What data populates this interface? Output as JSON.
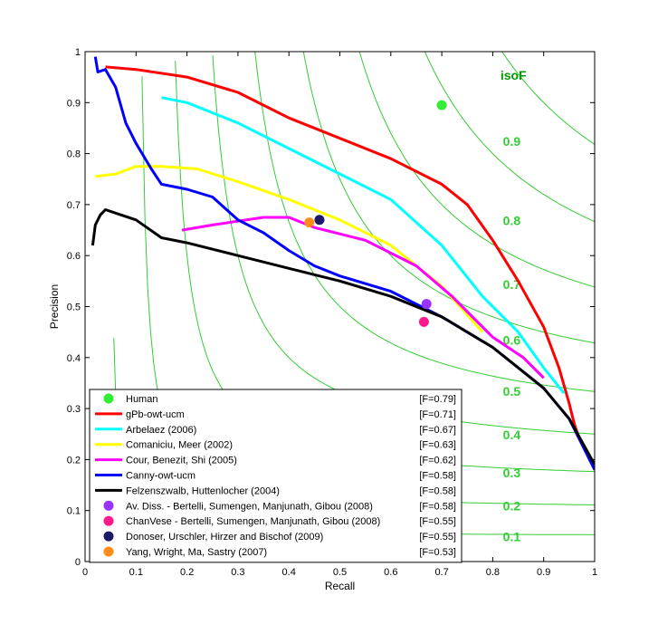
{
  "chart_data": {
    "type": "line",
    "xlabel": "Recall",
    "ylabel": "Precision",
    "xlim": [
      0,
      1
    ],
    "ylim": [
      0,
      1
    ],
    "xticks": [
      "0",
      "0.1",
      "0.2",
      "0.3",
      "0.4",
      "0.5",
      "0.6",
      "0.7",
      "0.8",
      "0.9",
      "1"
    ],
    "yticks": [
      "0",
      "0.1",
      "0.2",
      "0.3",
      "0.4",
      "0.5",
      "0.6",
      "0.7",
      "0.8",
      "0.9",
      "1"
    ],
    "grid": false,
    "legend_position": "bottom-left",
    "iso_f": {
      "title": "isoF",
      "color": "#33cc33",
      "labels": [
        {
          "text": "0.9",
          "x": 0.82,
          "y": 0.815
        },
        {
          "text": "0.8",
          "x": 0.82,
          "y": 0.66
        },
        {
          "text": "0.7",
          "x": 0.82,
          "y": 0.535
        },
        {
          "text": "0.6",
          "x": 0.82,
          "y": 0.425
        },
        {
          "text": "0.5",
          "x": 0.82,
          "y": 0.325
        },
        {
          "text": "0.4",
          "x": 0.82,
          "y": 0.24
        },
        {
          "text": "0.3",
          "x": 0.82,
          "y": 0.165
        },
        {
          "text": "0.2",
          "x": 0.82,
          "y": 0.1
        },
        {
          "text": "0.1",
          "x": 0.82,
          "y": 0.04
        }
      ]
    },
    "series": [
      {
        "name": "gPb-owt-ucm",
        "score": "[F=0.71]",
        "color": "#ff0000",
        "kind": "line",
        "points": [
          [
            0.04,
            0.97
          ],
          [
            0.1,
            0.965
          ],
          [
            0.2,
            0.95
          ],
          [
            0.3,
            0.92
          ],
          [
            0.4,
            0.87
          ],
          [
            0.5,
            0.83
          ],
          [
            0.6,
            0.79
          ],
          [
            0.7,
            0.74
          ],
          [
            0.75,
            0.7
          ],
          [
            0.8,
            0.63
          ],
          [
            0.85,
            0.55
          ],
          [
            0.9,
            0.46
          ],
          [
            0.93,
            0.38
          ],
          [
            0.95,
            0.31
          ],
          [
            0.96,
            0.27
          ],
          [
            0.97,
            0.24
          ]
        ]
      },
      {
        "name": "Arbelaez (2006)",
        "score": "[F=0.67]",
        "color": "#00ffff",
        "kind": "line",
        "points": [
          [
            0.15,
            0.91
          ],
          [
            0.2,
            0.9
          ],
          [
            0.3,
            0.86
          ],
          [
            0.4,
            0.81
          ],
          [
            0.5,
            0.76
          ],
          [
            0.6,
            0.71
          ],
          [
            0.7,
            0.62
          ],
          [
            0.78,
            0.52
          ],
          [
            0.85,
            0.45
          ],
          [
            0.9,
            0.38
          ],
          [
            0.94,
            0.33
          ]
        ]
      },
      {
        "name": "Comaniciu, Meer (2002)",
        "score": "[F=0.63]",
        "color": "#ffff00",
        "kind": "line",
        "points": [
          [
            0.02,
            0.755
          ],
          [
            0.06,
            0.76
          ],
          [
            0.1,
            0.775
          ],
          [
            0.15,
            0.775
          ],
          [
            0.22,
            0.77
          ],
          [
            0.3,
            0.745
          ],
          [
            0.4,
            0.71
          ],
          [
            0.5,
            0.67
          ],
          [
            0.6,
            0.62
          ],
          [
            0.7,
            0.54
          ],
          [
            0.78,
            0.45
          ]
        ]
      },
      {
        "name": "Cour, Benezit, Shi (2005)",
        "score": "[F=0.62]",
        "color": "#ff00ff",
        "kind": "line",
        "points": [
          [
            0.19,
            0.65
          ],
          [
            0.25,
            0.66
          ],
          [
            0.35,
            0.675
          ],
          [
            0.4,
            0.675
          ],
          [
            0.45,
            0.655
          ],
          [
            0.55,
            0.63
          ],
          [
            0.65,
            0.58
          ],
          [
            0.72,
            0.52
          ],
          [
            0.8,
            0.44
          ],
          [
            0.86,
            0.4
          ],
          [
            0.9,
            0.36
          ]
        ]
      },
      {
        "name": "Canny-owt-ucm",
        "score": "[F=0.58]",
        "color": "#0000ff",
        "kind": "line",
        "points": [
          [
            0.02,
            0.99
          ],
          [
            0.025,
            0.96
          ],
          [
            0.04,
            0.965
          ],
          [
            0.06,
            0.93
          ],
          [
            0.08,
            0.86
          ],
          [
            0.1,
            0.82
          ],
          [
            0.13,
            0.77
          ],
          [
            0.15,
            0.74
          ],
          [
            0.2,
            0.73
          ],
          [
            0.25,
            0.715
          ],
          [
            0.3,
            0.67
          ],
          [
            0.35,
            0.645
          ],
          [
            0.4,
            0.61
          ],
          [
            0.45,
            0.58
          ],
          [
            0.5,
            0.56
          ],
          [
            0.6,
            0.53
          ],
          [
            0.7,
            0.48
          ],
          [
            0.8,
            0.42
          ],
          [
            0.9,
            0.34
          ],
          [
            0.95,
            0.28
          ],
          [
            1.0,
            0.18
          ]
        ]
      },
      {
        "name": "Felzenszwalb, Huttenlocher (2004)",
        "score": "[F=0.58]",
        "color": "#000000",
        "kind": "line",
        "points": [
          [
            0.015,
            0.62
          ],
          [
            0.02,
            0.66
          ],
          [
            0.03,
            0.68
          ],
          [
            0.04,
            0.69
          ],
          [
            0.07,
            0.68
          ],
          [
            0.1,
            0.67
          ],
          [
            0.15,
            0.635
          ],
          [
            0.2,
            0.625
          ],
          [
            0.3,
            0.6
          ],
          [
            0.4,
            0.575
          ],
          [
            0.5,
            0.55
          ],
          [
            0.6,
            0.52
          ],
          [
            0.7,
            0.48
          ],
          [
            0.8,
            0.42
          ],
          [
            0.9,
            0.34
          ],
          [
            0.95,
            0.28
          ],
          [
            1.0,
            0.19
          ]
        ]
      },
      {
        "name": "Human",
        "score": "[F=0.79]",
        "color": "#33ee33",
        "kind": "point",
        "points": [
          [
            0.7,
            0.895
          ]
        ]
      },
      {
        "name": "Av. Diss. - Bertelli, Sumengen, Manjunath, Gibou (2008)",
        "score": "[F=0.58]",
        "color": "#9933ff",
        "kind": "point",
        "points": [
          [
            0.67,
            0.505
          ]
        ]
      },
      {
        "name": "ChanVese - Bertelli, Sumengen, Manjunath, Gibou (2008)",
        "score": "[F=0.55]",
        "color": "#ff1a8c",
        "kind": "point",
        "points": [
          [
            0.665,
            0.47
          ]
        ]
      },
      {
        "name": "Donoser, Urschler, Hirzer and Bischof (2009)",
        "score": "[F=0.55]",
        "color": "#1a1a66",
        "kind": "point",
        "points": [
          [
            0.46,
            0.67
          ]
        ]
      },
      {
        "name": "Yang, Wright, Ma, Sastry (2007)",
        "score": "[F=0.53]",
        "color": "#ff8c1a",
        "kind": "point",
        "points": [
          [
            0.44,
            0.665
          ]
        ]
      }
    ],
    "legend_order": [
      "Human",
      "gPb-owt-ucm",
      "Arbelaez (2006)",
      "Comaniciu, Meer (2002)",
      "Cour, Benezit, Shi (2005)",
      "Canny-owt-ucm",
      "Felzenszwalb, Huttenlocher (2004)",
      "Av. Diss. - Bertelli, Sumengen, Manjunath, Gibou (2008)",
      "ChanVese - Bertelli, Sumengen, Manjunath, Gibou (2008)",
      "Donoser, Urschler, Hirzer and Bischof (2009)",
      "Yang, Wright, Ma, Sastry (2007)"
    ]
  }
}
